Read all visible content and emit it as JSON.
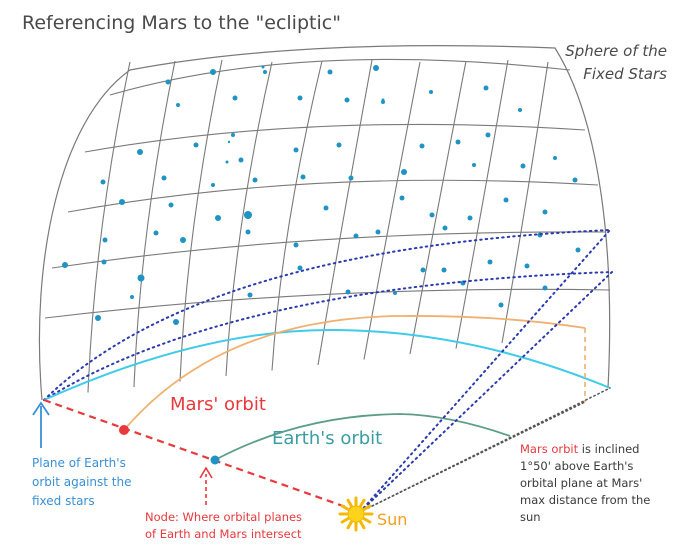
{
  "title": "Referencing Mars to the \"ecliptic\"",
  "sphere_label": [
    "Sphere of the",
    "Fixed Stars"
  ],
  "mars_orbit_label": "Mars' orbit",
  "earth_orbit_label": "Earth's orbit",
  "plane_label": [
    "Plane of Earth's",
    "orbit against the",
    "fixed stars"
  ],
  "node_label": [
    "Node: Where orbital planes",
    "of Earth and Mars intersect"
  ],
  "sun_label": "Sun",
  "note": {
    "highlight": "Mars orbit",
    "line1_rest": " is inclined",
    "lines": [
      "1°50' above Earth's",
      "orbital plane at Mars'",
      "max distance from the",
      "sun"
    ]
  },
  "colors": {
    "grid": "#7a7a7a",
    "stars": "#1e93c4",
    "ecliptic": "#3fcbe9",
    "mars_orbit": "#f0b070",
    "earth_orbit": "#5c9e8a",
    "node_line": "#e8393d",
    "sight_lines": "#2b3ab0",
    "sun": "#ffd21c",
    "plane_arrow": "#3a8fd6"
  }
}
